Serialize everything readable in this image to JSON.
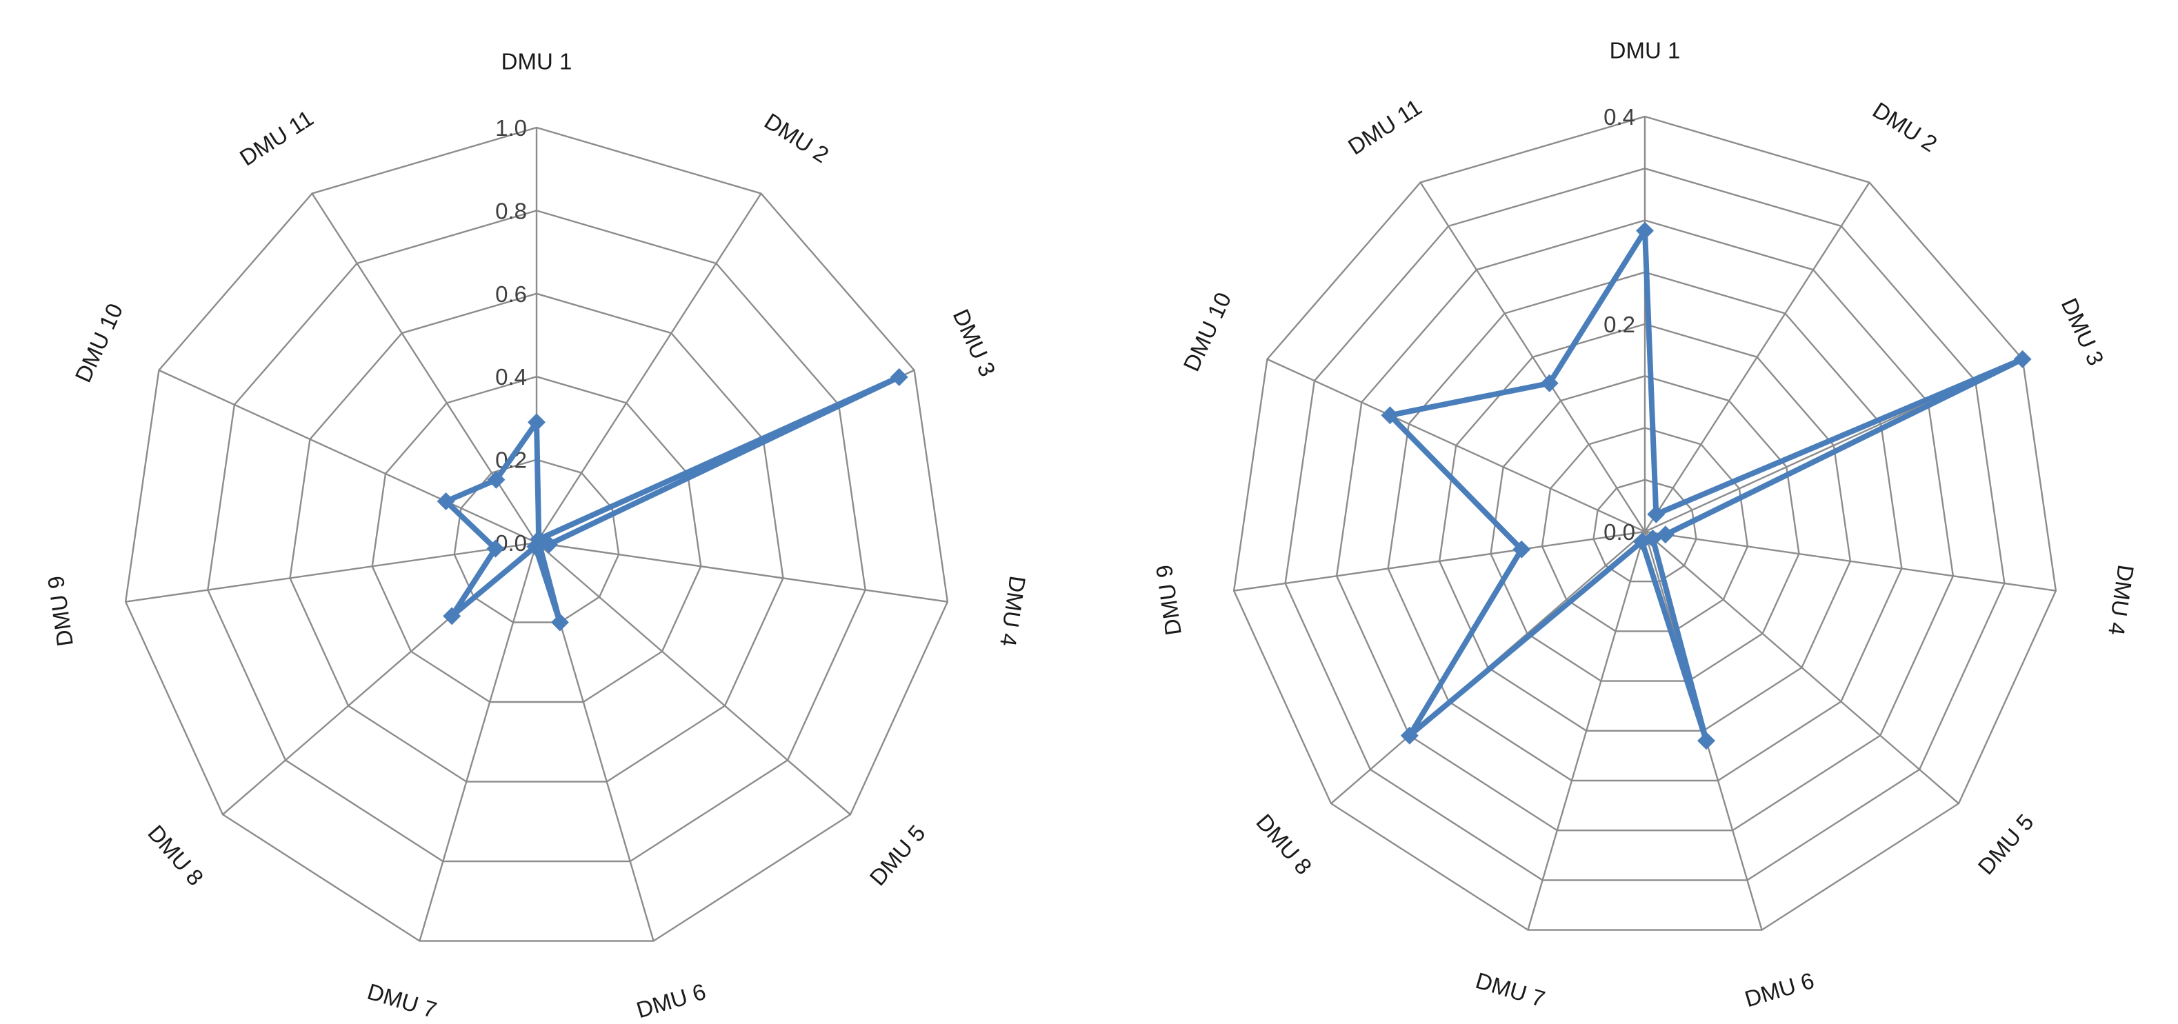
{
  "colors": {
    "series": "#4a7ebb",
    "grid": "#8c8c8c",
    "background": "#ffffff"
  },
  "chart_data": [
    {
      "type": "radar",
      "categories": [
        "DMU 1",
        "DMU 2",
        "DMU 3",
        "DMU 4",
        "DMU 5",
        "DMU 6",
        "DMU 7",
        "DMU 8",
        "DMU 9",
        "DMU 10",
        "DMU 11"
      ],
      "tick_labels": [
        "0.0",
        "0.2",
        "0.4",
        "0.6",
        "0.8",
        "1.0"
      ],
      "rlim": [
        0,
        1.0
      ],
      "grid": true,
      "series": [
        {
          "values": [
            0.29,
            0.01,
            0.96,
            0.03,
            0.01,
            0.2,
            0.01,
            0.27,
            0.1,
            0.24,
            0.18
          ]
        }
      ]
    },
    {
      "type": "radar",
      "categories": [
        "DMU 1",
        "DMU 2",
        "DMU 3",
        "DMU 4",
        "DMU 5",
        "DMU 6",
        "DMU 7",
        "DMU 8",
        "DMU 9",
        "DMU 10",
        "DMU 11"
      ],
      "tick_labels": [
        "0.0",
        "0.2",
        "0.4"
      ],
      "rlim": [
        0,
        0.4
      ],
      "grid": true,
      "series": [
        {
          "values": [
            0.29,
            0.02,
            0.4,
            0.02,
            0.01,
            0.21,
            0.01,
            0.3,
            0.12,
            0.27,
            0.17
          ]
        }
      ]
    }
  ]
}
